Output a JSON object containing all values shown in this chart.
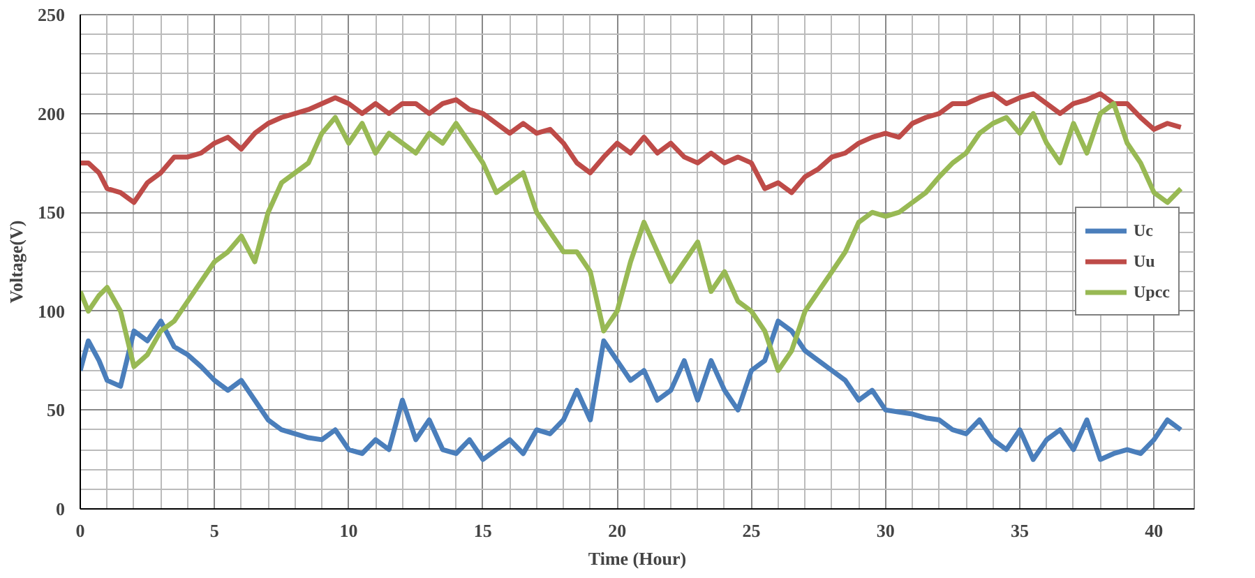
{
  "chart_data": {
    "type": "line",
    "xlabel": "Time (Hour)",
    "ylabel": "Voltage(V)",
    "xlim": [
      0,
      41.5
    ],
    "ylim": [
      0,
      250
    ],
    "xticks": [
      0,
      5,
      10,
      15,
      20,
      25,
      30,
      35,
      40
    ],
    "yticks": [
      0,
      50,
      100,
      150,
      200,
      250
    ],
    "grid": true,
    "legend": "right",
    "line_style": "solid",
    "marker": "none",
    "x": [
      0,
      0.3,
      0.7,
      1,
      1.5,
      2,
      2.5,
      3,
      3.5,
      4,
      4.5,
      5,
      5.5,
      6,
      6.5,
      7,
      7.5,
      8,
      8.5,
      9,
      9.5,
      10,
      10.5,
      11,
      11.5,
      12,
      12.5,
      13,
      13.5,
      14,
      14.5,
      15,
      15.5,
      16,
      16.5,
      17,
      17.5,
      18,
      18.5,
      19,
      19.5,
      20,
      20.5,
      21,
      21.5,
      22,
      22.5,
      23,
      23.5,
      24,
      24.5,
      25,
      25.5,
      26,
      26.5,
      27,
      27.5,
      28,
      28.5,
      29,
      29.5,
      30,
      30.5,
      31,
      31.5,
      32,
      32.5,
      33,
      33.5,
      34,
      34.5,
      35,
      35.5,
      36,
      36.5,
      37,
      37.5,
      38,
      38.5,
      39,
      39.5,
      40,
      40.5,
      41
    ],
    "series": [
      {
        "name": "Uc",
        "color": "#4a7ebb",
        "values": [
          70,
          85,
          75,
          65,
          62,
          90,
          85,
          95,
          82,
          78,
          72,
          65,
          60,
          65,
          55,
          45,
          40,
          38,
          36,
          35,
          40,
          30,
          28,
          35,
          30,
          55,
          35,
          45,
          30,
          28,
          35,
          25,
          30,
          35,
          28,
          40,
          38,
          45,
          60,
          45,
          85,
          75,
          65,
          70,
          55,
          60,
          75,
          55,
          75,
          60,
          50,
          70,
          75,
          95,
          90,
          80,
          75,
          70,
          65,
          55,
          60,
          50,
          49,
          48,
          46,
          45,
          40,
          38,
          45,
          35,
          30,
          40,
          25,
          35,
          40,
          30,
          45,
          25,
          28,
          30,
          28,
          35,
          45,
          40
        ]
      },
      {
        "name": "Uu",
        "color": "#be4b48",
        "values": [
          175,
          175,
          170,
          162,
          160,
          155,
          165,
          170,
          178,
          178,
          180,
          185,
          188,
          182,
          190,
          195,
          198,
          200,
          202,
          205,
          208,
          205,
          200,
          205,
          200,
          205,
          205,
          200,
          205,
          207,
          202,
          200,
          195,
          190,
          195,
          190,
          192,
          185,
          175,
          170,
          178,
          185,
          180,
          188,
          180,
          185,
          178,
          175,
          180,
          175,
          178,
          175,
          162,
          165,
          160,
          168,
          172,
          178,
          180,
          185,
          188,
          190,
          188,
          195,
          198,
          200,
          205,
          205,
          208,
          210,
          205,
          208,
          210,
          205,
          200,
          205,
          207,
          210,
          205,
          205,
          198,
          192,
          195,
          193
        ]
      },
      {
        "name": "Upcc",
        "color": "#98b954",
        "values": [
          110,
          100,
          108,
          112,
          100,
          72,
          78,
          90,
          95,
          105,
          115,
          125,
          130,
          138,
          125,
          150,
          165,
          170,
          175,
          190,
          198,
          185,
          195,
          180,
          190,
          185,
          180,
          190,
          185,
          195,
          185,
          175,
          160,
          165,
          170,
          150,
          140,
          130,
          130,
          120,
          90,
          100,
          125,
          145,
          130,
          115,
          125,
          135,
          110,
          120,
          105,
          100,
          90,
          70,
          80,
          100,
          110,
          120,
          130,
          145,
          150,
          148,
          150,
          155,
          160,
          168,
          175,
          180,
          190,
          195,
          198,
          190,
          200,
          185,
          175,
          195,
          180,
          200,
          205,
          185,
          175,
          160,
          155,
          162
        ]
      }
    ]
  }
}
